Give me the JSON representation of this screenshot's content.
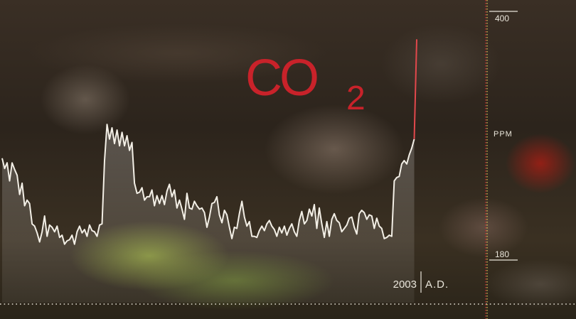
{
  "chart_data": {
    "type": "line",
    "title": "CO",
    "title_subscript": "2",
    "y_unit": "PPM",
    "y_ticks": [
      "400",
      "180"
    ],
    "ylim": [
      180,
      400
    ],
    "end_label_year": "2003",
    "end_label_era": "A.D.",
    "values": [
      270,
      261,
      266,
      250,
      266,
      260,
      255,
      238,
      248,
      228,
      233,
      230,
      212,
      210,
      204,
      196,
      205,
      219,
      201,
      211,
      209,
      205,
      210,
      200,
      202,
      194,
      197,
      198,
      202,
      194,
      205,
      210,
      204,
      207,
      201,
      211,
      206,
      205,
      201,
      211,
      212,
      268,
      300,
      287,
      297,
      283,
      295,
      281,
      293,
      281,
      290,
      277,
      284,
      248,
      239,
      240,
      244,
      233,
      236,
      236,
      242,
      228,
      237,
      230,
      237,
      229,
      241,
      247,
      236,
      242,
      226,
      233,
      225,
      216,
      239,
      226,
      225,
      232,
      228,
      225,
      226,
      222,
      209,
      218,
      230,
      231,
      236,
      220,
      213,
      224,
      220,
      209,
      199,
      209,
      208,
      221,
      232,
      218,
      210,
      214,
      201,
      201,
      200,
      206,
      210,
      206,
      212,
      215,
      210,
      207,
      201,
      209,
      204,
      210,
      202,
      208,
      212,
      205,
      201,
      215,
      223,
      212,
      215,
      225,
      219,
      229,
      208,
      226,
      212,
      200,
      214,
      201,
      216,
      221,
      215,
      213,
      205,
      208,
      211,
      217,
      218,
      209,
      203,
      221,
      224,
      222,
      216,
      220,
      219,
      208,
      217,
      210,
      208,
      199,
      200,
      202,
      201,
      250,
      253,
      254,
      265,
      268,
      265,
      273,
      279,
      287,
      375
    ],
    "line_color": "#f3efe6",
    "spike_color": "#e2484c",
    "title_color": "#c8222a",
    "axis_line_color": "#d8323a",
    "axis_dotted_color": "#e4d25a",
    "baseline_dotted_color": "#e6e2d6"
  }
}
